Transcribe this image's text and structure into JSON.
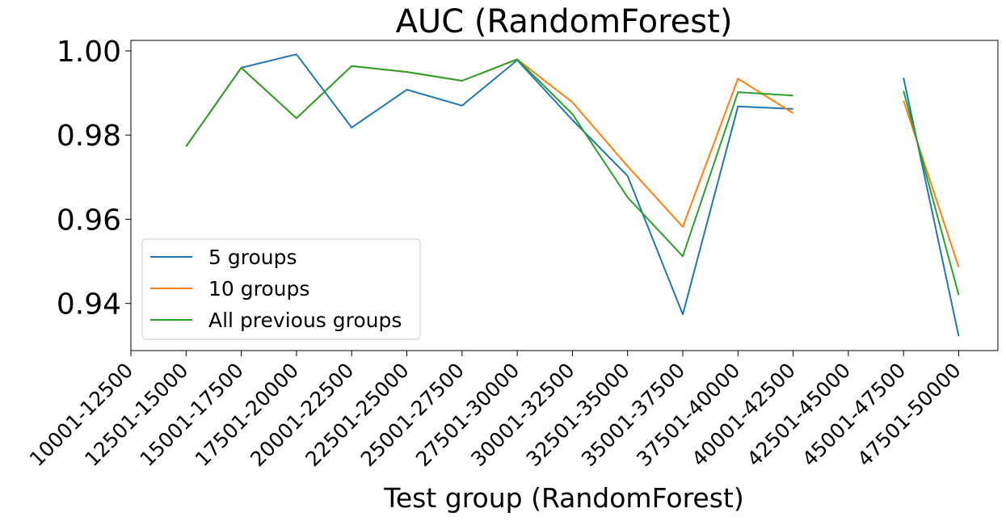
{
  "chart_data": {
    "type": "line",
    "title": "AUC (RandomForest)",
    "xlabel": "Test group (RandomForest)",
    "ylabel": "",
    "categories": [
      "10001-12500",
      "12501-15000",
      "15001-17500",
      "17501-20000",
      "20001-22500",
      "22501-25000",
      "25001-27500",
      "27501-30000",
      "30001-32500",
      "32501-35000",
      "35001-37500",
      "37501-40000",
      "40001-42500",
      "42501-45000",
      "45001-47500",
      "47501-50000"
    ],
    "yticks": [
      0.94,
      0.96,
      0.98,
      1.0
    ],
    "ytick_labels": [
      "0.94",
      "0.96",
      "0.98",
      "1.00"
    ],
    "ylim": [
      0.9288,
      1.0025
    ],
    "grid": false,
    "legend_position": "lower-left",
    "series": [
      {
        "name": "5 groups",
        "color": "#1f77b4",
        "values": [
          null,
          0.9773,
          0.996,
          0.9992,
          0.9818,
          0.9908,
          0.987,
          0.9978,
          0.9836,
          0.9703,
          0.9374,
          0.9868,
          0.9862,
          null,
          0.9936,
          0.9322
        ]
      },
      {
        "name": "10 groups",
        "color": "#ff7f0e",
        "values": [
          null,
          0.9773,
          0.996,
          0.984,
          0.9964,
          0.995,
          0.9929,
          0.998,
          0.9878,
          0.9726,
          0.9582,
          0.9934,
          0.9852,
          null,
          0.9882,
          0.9486
        ]
      },
      {
        "name": "All previous groups",
        "color": "#2ca02c",
        "values": [
          null,
          0.9773,
          0.996,
          0.984,
          0.9964,
          0.995,
          0.9929,
          0.998,
          0.985,
          0.9652,
          0.9512,
          0.9902,
          0.9894,
          null,
          0.9905,
          0.942
        ]
      }
    ]
  }
}
